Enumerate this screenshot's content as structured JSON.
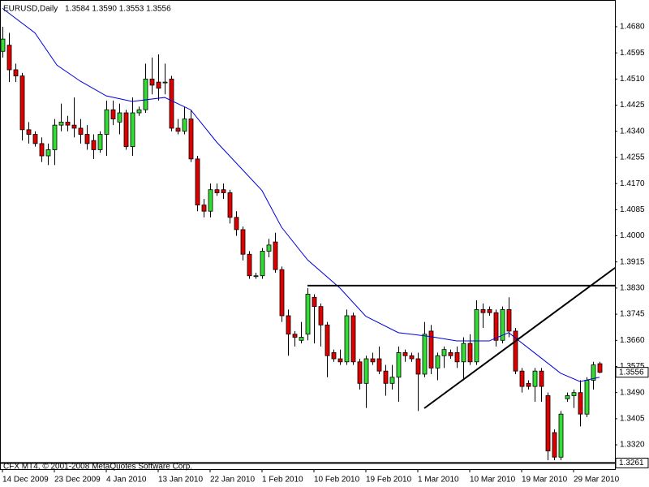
{
  "chart_data": {
    "type": "candlestick",
    "title": "EURUSD,Daily",
    "ohlc_text": "1.3584 1.3590 1.3553 1.3556",
    "footer": "CFX MT4, © 2001-2008 MetaQuotes Software Corp.",
    "categories": [
      "14 Dec 2009",
      null,
      null,
      null,
      null,
      null,
      null,
      null,
      "23 Dec 2009",
      null,
      null,
      null,
      null,
      null,
      null,
      null,
      "4 Jan 2010",
      null,
      null,
      null,
      null,
      null,
      null,
      null,
      "13 Jan 2010",
      null,
      null,
      null,
      null,
      null,
      null,
      null,
      "22 Jan 2010",
      null,
      null,
      null,
      null,
      null,
      null,
      null,
      "1 Feb 2010",
      null,
      null,
      null,
      null,
      null,
      null,
      null,
      "10 Feb 2010",
      null,
      null,
      null,
      null,
      null,
      null,
      null,
      "19 Feb 2010",
      null,
      null,
      null,
      null,
      null,
      null,
      null,
      "1 Mar 2010",
      null,
      null,
      null,
      null,
      null,
      null,
      null,
      "10 Mar 2010",
      null,
      null,
      null,
      null,
      null,
      null,
      null,
      "19 Mar 2010",
      null,
      null,
      null,
      null,
      null,
      null,
      null,
      "29 Mar 2010",
      null,
      null,
      null,
      null
    ],
    "open": [
      1.46,
      1.462,
      1.454,
      1.452,
      1.4345,
      1.433,
      1.43,
      1.426,
      1.428,
      1.436,
      1.437,
      1.436,
      1.435,
      1.433,
      1.431,
      1.428,
      1.433,
      1.441,
      1.437,
      1.44,
      1.429,
      1.44,
      1.441,
      1.451,
      1.45,
      1.45,
      1.451,
      1.435,
      1.434,
      1.438,
      1.425,
      1.41,
      1.408,
      1.415,
      1.415,
      1.414,
      1.406,
      1.402,
      1.394,
      1.387,
      1.387,
      1.395,
      1.398,
      1.389,
      1.374,
      1.368,
      1.366,
      1.368,
      1.38,
      1.377,
      1.371,
      1.362,
      1.36,
      1.359,
      1.374,
      1.359,
      1.352,
      1.36,
      1.36,
      1.356,
      1.352,
      1.354,
      1.362,
      1.361,
      1.36,
      1.355,
      1.369,
      1.357,
      1.361,
      1.362,
      1.362,
      1.359,
      1.365,
      1.359,
      1.376,
      1.376,
      1.375,
      1.366,
      1.376,
      1.369,
      1.356,
      1.352,
      1.351,
      1.356,
      1.348,
      1.336,
      1.328,
      1.347,
      1.348,
      1.349,
      1.342,
      1.353,
      1.3584
    ],
    "high": [
      1.468,
      1.466,
      1.456,
      1.453,
      1.437,
      1.434,
      1.432,
      1.43,
      1.438,
      1.443,
      1.439,
      1.445,
      1.438,
      1.436,
      1.433,
      1.434,
      1.444,
      1.444,
      1.443,
      1.441,
      1.445,
      1.442,
      1.456,
      1.458,
      1.459,
      1.456,
      1.452,
      1.438,
      1.442,
      1.441,
      1.426,
      1.412,
      1.417,
      1.417,
      1.417,
      1.415,
      1.408,
      1.403,
      1.395,
      1.388,
      1.396,
      1.399,
      1.401,
      1.39,
      1.376,
      1.369,
      1.372,
      1.383,
      1.381,
      1.378,
      1.372,
      1.363,
      1.363,
      1.376,
      1.375,
      1.36,
      1.361,
      1.362,
      1.364,
      1.358,
      1.358,
      1.364,
      1.363,
      1.362,
      1.362,
      1.372,
      1.371,
      1.362,
      1.364,
      1.363,
      1.364,
      1.367,
      1.368,
      1.379,
      1.378,
      1.377,
      1.376,
      1.377,
      1.38,
      1.37,
      1.357,
      1.353,
      1.357,
      1.357,
      1.349,
      1.337,
      1.343,
      1.349,
      1.35,
      1.353,
      1.354,
      1.359,
      1.359
    ],
    "low": [
      1.458,
      1.45,
      1.45,
      1.431,
      1.43,
      1.429,
      1.424,
      1.423,
      1.423,
      1.434,
      1.434,
      1.432,
      1.43,
      1.428,
      1.425,
      1.427,
      1.426,
      1.436,
      1.433,
      1.428,
      1.426,
      1.439,
      1.44,
      1.446,
      1.444,
      1.446,
      1.434,
      1.433,
      1.433,
      1.424,
      1.408,
      1.406,
      1.406,
      1.413,
      1.412,
      1.404,
      1.4,
      1.392,
      1.386,
      1.386,
      1.386,
      1.393,
      1.388,
      1.372,
      1.361,
      1.364,
      1.365,
      1.366,
      1.365,
      1.364,
      1.354,
      1.359,
      1.358,
      1.358,
      1.358,
      1.35,
      1.344,
      1.358,
      1.355,
      1.348,
      1.35,
      1.346,
      1.359,
      1.359,
      1.343,
      1.354,
      1.355,
      1.353,
      1.357,
      1.36,
      1.357,
      1.353,
      1.358,
      1.358,
      1.37,
      1.374,
      1.364,
      1.365,
      1.367,
      1.355,
      1.349,
      1.35,
      1.346,
      1.346,
      1.327,
      1.327,
      1.327,
      1.346,
      1.344,
      1.338,
      1.341,
      1.35,
      1.3553
    ],
    "close": [
      1.464,
      1.454,
      1.452,
      1.4345,
      1.433,
      1.43,
      1.426,
      1.428,
      1.436,
      1.437,
      1.436,
      1.435,
      1.433,
      1.43,
      1.428,
      1.433,
      1.441,
      1.438,
      1.44,
      1.429,
      1.44,
      1.441,
      1.451,
      1.449,
      1.448,
      1.45,
      1.435,
      1.434,
      1.438,
      1.425,
      1.41,
      1.408,
      1.415,
      1.414,
      1.414,
      1.406,
      1.402,
      1.394,
      1.387,
      1.387,
      1.395,
      1.397,
      1.389,
      1.374,
      1.368,
      1.367,
      1.367,
      1.381,
      1.377,
      1.371,
      1.361,
      1.36,
      1.359,
      1.374,
      1.359,
      1.352,
      1.36,
      1.359,
      1.356,
      1.352,
      1.354,
      1.362,
      1.361,
      1.36,
      1.355,
      1.368,
      1.357,
      1.361,
      1.363,
      1.361,
      1.359,
      1.365,
      1.359,
      1.376,
      1.375,
      1.375,
      1.366,
      1.376,
      1.369,
      1.356,
      1.351,
      1.351,
      1.356,
      1.351,
      1.33,
      1.328,
      1.342,
      1.348,
      1.349,
      1.342,
      1.353,
      1.358,
      1.3556
    ],
    "up_color": "#33dd33",
    "down_color": "#e00000",
    "ylim": [
      1.3241,
      1.4767
    ],
    "yticks": [
      {
        "value": 1.468,
        "label": "1.4680"
      },
      {
        "value": 1.4595,
        "label": "1.4595"
      },
      {
        "value": 1.451,
        "label": "1.4510"
      },
      {
        "value": 1.4425,
        "label": "1.4425"
      },
      {
        "value": 1.434,
        "label": "1.4340"
      },
      {
        "value": 1.4255,
        "label": "1.4255"
      },
      {
        "value": 1.417,
        "label": "1.4170"
      },
      {
        "value": 1.4085,
        "label": "1.4085"
      },
      {
        "value": 1.4,
        "label": "1.4000"
      },
      {
        "value": 1.3915,
        "label": "1.3915"
      },
      {
        "value": 1.383,
        "label": "1.3830"
      },
      {
        "value": 1.3745,
        "label": "1.3745"
      },
      {
        "value": 1.366,
        "label": "1.3660"
      },
      {
        "value": 1.3575,
        "label": "1.3575"
      },
      {
        "value": 1.349,
        "label": "1.3490"
      },
      {
        "value": 1.3405,
        "label": "1.3405"
      },
      {
        "value": 1.332,
        "label": "1.3320"
      }
    ],
    "price_labels": [
      {
        "value": 1.3556,
        "label": "1.3556",
        "line": false
      },
      {
        "value": 1.3261,
        "label": "1.3261",
        "line": true
      }
    ],
    "moving_average": {
      "color": "#0000dd",
      "x": [
        0,
        5,
        8.4,
        12,
        16,
        20,
        25,
        29,
        33,
        40,
        43,
        47,
        52,
        56,
        61,
        66,
        70,
        75,
        78,
        82,
        86,
        89,
        92
      ],
      "values": [
        1.474,
        1.466,
        1.4555,
        1.4503,
        1.4455,
        1.4437,
        1.445,
        1.441,
        1.4305,
        1.4147,
        1.4028,
        1.3922,
        1.383,
        1.3738,
        1.3685,
        1.3672,
        1.3658,
        1.3658,
        1.3685,
        1.3619,
        1.3553,
        1.3526,
        1.354
      ]
    },
    "lines": [
      {
        "x": [
          47,
          94.4
        ],
        "values": [
          1.3838,
          1.3838
        ]
      },
      {
        "x": [
          65,
          94.4
        ],
        "values": [
          1.3439,
          1.3896
        ]
      }
    ]
  }
}
